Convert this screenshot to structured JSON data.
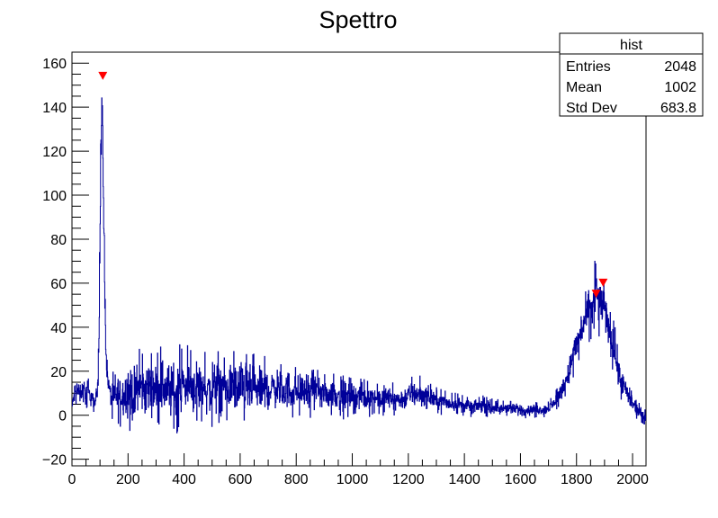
{
  "chart_data": {
    "type": "histogram",
    "title": "Spettro",
    "xlabel": "",
    "ylabel": "",
    "xlim": [
      0,
      2048
    ],
    "ylim": [
      -23,
      165
    ],
    "x_ticks": [
      0,
      200,
      400,
      600,
      800,
      1000,
      1200,
      1400,
      1600,
      1800,
      2000
    ],
    "y_ticks": [
      -20,
      0,
      20,
      40,
      60,
      80,
      100,
      120,
      140,
      160
    ],
    "grid": false,
    "series": [
      {
        "color": "#000099",
        "envelope": [
          [
            0,
            2,
            6
          ],
          [
            8,
            3,
            16
          ],
          [
            16,
            6,
            20
          ],
          [
            24,
            2,
            17
          ],
          [
            32,
            5,
            14
          ],
          [
            40,
            4,
            21
          ],
          [
            48,
            2,
            16
          ],
          [
            56,
            5,
            17
          ],
          [
            64,
            2,
            15
          ],
          [
            72,
            3,
            14
          ],
          [
            80,
            1,
            8
          ],
          [
            86,
            4,
            12
          ],
          [
            92,
            8,
            25
          ],
          [
            96,
            20,
            60
          ],
          [
            100,
            60,
            110
          ],
          [
            103,
            100,
            130
          ],
          [
            106,
            120,
            152
          ],
          [
            109,
            110,
            154
          ],
          [
            112,
            80,
            120
          ],
          [
            115,
            55,
            90
          ],
          [
            118,
            35,
            60
          ],
          [
            121,
            22,
            40
          ],
          [
            125,
            12,
            28
          ],
          [
            130,
            6,
            20
          ],
          [
            140,
            0,
            16
          ],
          [
            150,
            -5,
            22
          ],
          [
            160,
            -8,
            25
          ],
          [
            180,
            -3,
            22
          ],
          [
            200,
            -6,
            28
          ],
          [
            220,
            -9,
            25
          ],
          [
            240,
            -3,
            30
          ],
          [
            260,
            -5,
            26
          ],
          [
            280,
            -4,
            33
          ],
          [
            300,
            -2,
            27
          ],
          [
            320,
            -6,
            32
          ],
          [
            340,
            -3,
            28
          ],
          [
            360,
            -10,
            30
          ],
          [
            375,
            -15,
            35
          ],
          [
            390,
            -4,
            30
          ],
          [
            410,
            -5,
            32
          ],
          [
            430,
            -3,
            28
          ],
          [
            450,
            -2,
            31
          ],
          [
            470,
            -3,
            29
          ],
          [
            490,
            -6,
            27
          ],
          [
            510,
            -4,
            30
          ],
          [
            530,
            -3,
            28
          ],
          [
            550,
            -2,
            25
          ],
          [
            570,
            -3,
            30
          ],
          [
            590,
            -4,
            27
          ],
          [
            610,
            -2,
            30
          ],
          [
            630,
            -3,
            26
          ],
          [
            650,
            -4,
            28
          ],
          [
            670,
            -2,
            25
          ],
          [
            690,
            -3,
            27
          ],
          [
            710,
            -1,
            24
          ],
          [
            730,
            0,
            26
          ],
          [
            750,
            -2,
            22
          ],
          [
            770,
            0,
            24
          ],
          [
            790,
            -1,
            21
          ],
          [
            810,
            0,
            23
          ],
          [
            830,
            1,
            22
          ],
          [
            850,
            -1,
            20
          ],
          [
            870,
            1,
            21
          ],
          [
            890,
            0,
            19
          ],
          [
            910,
            1,
            18
          ],
          [
            930,
            0,
            19
          ],
          [
            950,
            1,
            17
          ],
          [
            970,
            -2,
            18
          ],
          [
            990,
            0,
            17
          ],
          [
            1010,
            1,
            16
          ],
          [
            1030,
            0,
            18
          ],
          [
            1050,
            0,
            15
          ],
          [
            1070,
            -1,
            17
          ],
          [
            1090,
            1,
            14
          ],
          [
            1110,
            0,
            16
          ],
          [
            1130,
            2,
            14
          ],
          [
            1150,
            0,
            15
          ],
          [
            1170,
            1,
            13
          ],
          [
            1190,
            0,
            16
          ],
          [
            1210,
            2,
            17
          ],
          [
            1230,
            0,
            20
          ],
          [
            1250,
            2,
            16
          ],
          [
            1270,
            1,
            15
          ],
          [
            1290,
            2,
            13
          ],
          [
            1310,
            0,
            12
          ],
          [
            1330,
            1,
            11
          ],
          [
            1350,
            0,
            10
          ],
          [
            1370,
            1,
            10
          ],
          [
            1390,
            0,
            9
          ],
          [
            1410,
            0,
            9
          ],
          [
            1430,
            -1,
            8
          ],
          [
            1450,
            1,
            8
          ],
          [
            1470,
            0,
            9
          ],
          [
            1490,
            -1,
            7
          ],
          [
            1510,
            0,
            8
          ],
          [
            1530,
            -1,
            6
          ],
          [
            1550,
            0,
            7
          ],
          [
            1570,
            -1,
            6
          ],
          [
            1590,
            0,
            6
          ],
          [
            1610,
            -2,
            6
          ],
          [
            1630,
            0,
            5
          ],
          [
            1650,
            -1,
            6
          ],
          [
            1670,
            0,
            5
          ],
          [
            1690,
            -1,
            6
          ],
          [
            1700,
            0,
            6
          ],
          [
            1710,
            0,
            8
          ],
          [
            1720,
            2,
            10
          ],
          [
            1730,
            3,
            12
          ],
          [
            1740,
            5,
            15
          ],
          [
            1750,
            7,
            18
          ],
          [
            1760,
            9,
            22
          ],
          [
            1770,
            10,
            27
          ],
          [
            1780,
            15,
            33
          ],
          [
            1790,
            18,
            38
          ],
          [
            1800,
            22,
            43
          ],
          [
            1810,
            26,
            48
          ],
          [
            1820,
            28,
            52
          ],
          [
            1830,
            30,
            56
          ],
          [
            1840,
            32,
            60
          ],
          [
            1850,
            35,
            63
          ],
          [
            1860,
            33,
            68
          ],
          [
            1870,
            38,
            72
          ],
          [
            1880,
            36,
            68
          ],
          [
            1890,
            38,
            64
          ],
          [
            1900,
            35,
            60
          ],
          [
            1910,
            30,
            56
          ],
          [
            1920,
            25,
            50
          ],
          [
            1930,
            20,
            44
          ],
          [
            1940,
            15,
            38
          ],
          [
            1950,
            10,
            30
          ],
          [
            1960,
            7,
            24
          ],
          [
            1970,
            5,
            20
          ],
          [
            1980,
            3,
            16
          ],
          [
            1990,
            2,
            12
          ],
          [
            2000,
            0,
            10
          ],
          [
            2010,
            -1,
            8
          ],
          [
            2020,
            -2,
            6
          ],
          [
            2030,
            -3,
            4
          ],
          [
            2040,
            -4,
            3
          ],
          [
            2047,
            -4,
            2
          ]
        ]
      }
    ],
    "peak_markers": [
      {
        "x": 110,
        "y": 154
      },
      {
        "x": 1870,
        "y": 55
      },
      {
        "x": 1895,
        "y": 60
      }
    ],
    "stats_box": {
      "name": "hist",
      "rows": [
        {
          "label": "Entries",
          "value": "2048"
        },
        {
          "label": "Mean",
          "value": "1002"
        },
        {
          "label": "Std Dev",
          "value": "683.8"
        }
      ]
    }
  }
}
